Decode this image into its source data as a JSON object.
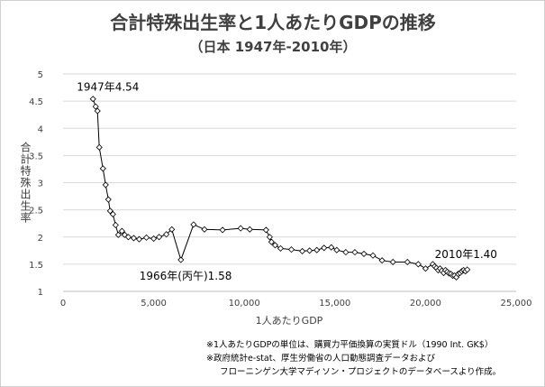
{
  "chart_data": {
    "type": "scatter",
    "title": "合計特殊出生率と1人あたりGDPの推移",
    "subtitle": "（日本 1947年-2010年）",
    "xlabel": "1人あたりGDP",
    "ylabel": "合計特殊出生率",
    "xlim": [
      0,
      25000
    ],
    "ylim": [
      1,
      5
    ],
    "x_ticks": [
      "0",
      "5,000",
      "10,000",
      "15,000",
      "20,000",
      "25,000"
    ],
    "y_ticks": [
      "1",
      "1.5",
      "2",
      "2.5",
      "3",
      "3.5",
      "4",
      "4.5",
      "5"
    ],
    "grid": "horizontal",
    "series": [
      {
        "x": [
          1650,
          1800,
          1900,
          2000,
          2200,
          2350,
          2500,
          2600,
          2750,
          2900,
          3050,
          3250,
          3400,
          3600,
          3900,
          4200,
          4600,
          5000,
          5300,
          5700,
          6000,
          6500,
          7200,
          7800,
          8800,
          9800,
          10300,
          11200,
          11400,
          11500,
          11700,
          12000,
          12600,
          13200,
          13600,
          14000,
          14400,
          14800,
          15100,
          15600,
          16100,
          16600,
          17100,
          17600,
          18200,
          19000,
          19600,
          20000,
          20400,
          20500,
          20600,
          20700,
          20800,
          20900,
          21000,
          21100,
          21200,
          21300,
          21400,
          21500,
          21600,
          21700,
          21800,
          21900,
          22000,
          22100,
          22200,
          22300
        ],
        "y": [
          4.54,
          4.4,
          4.32,
          3.65,
          3.26,
          2.96,
          2.69,
          2.48,
          2.42,
          2.22,
          2.04,
          2.11,
          2.04,
          2.0,
          1.98,
          1.96,
          1.99,
          1.97,
          2.0,
          2.05,
          2.14,
          1.58,
          2.23,
          2.14,
          2.13,
          2.16,
          2.14,
          2.13,
          2.0,
          1.91,
          1.85,
          1.79,
          1.77,
          1.74,
          1.75,
          1.76,
          1.8,
          1.81,
          1.76,
          1.72,
          1.72,
          1.69,
          1.66,
          1.57,
          1.54,
          1.54,
          1.5,
          1.42,
          1.5,
          1.46,
          1.43,
          1.39,
          1.42,
          1.38,
          1.34,
          1.39,
          1.36,
          1.33,
          1.32,
          1.29,
          1.29,
          1.26,
          1.32,
          1.34,
          1.37,
          1.39,
          1.37,
          1.4
        ]
      }
    ],
    "annotations": [
      {
        "text": "1947年4.54",
        "x": 1650,
        "y": 4.54
      },
      {
        "text": "1966年(丙午)1.58",
        "x": 6500,
        "y": 1.58
      },
      {
        "text": "2010年1.40",
        "x": 22300,
        "y": 1.4
      }
    ],
    "footnotes": [
      "※1人あたりGDPの単位は、購買力平価換算の実質ドル（1990 Int. GK$）",
      "※政府統計e-stat、厚生労働省の人口動態調査データおよび",
      "フローニンゲン大学マディソン・プロジェクトのデータベースより作成。"
    ],
    "colors": {
      "line": "#000000",
      "marker_fill": "#ffffff",
      "grid": "#d9d9d9",
      "axis": "#bfbfbf",
      "text": "#404040"
    }
  }
}
